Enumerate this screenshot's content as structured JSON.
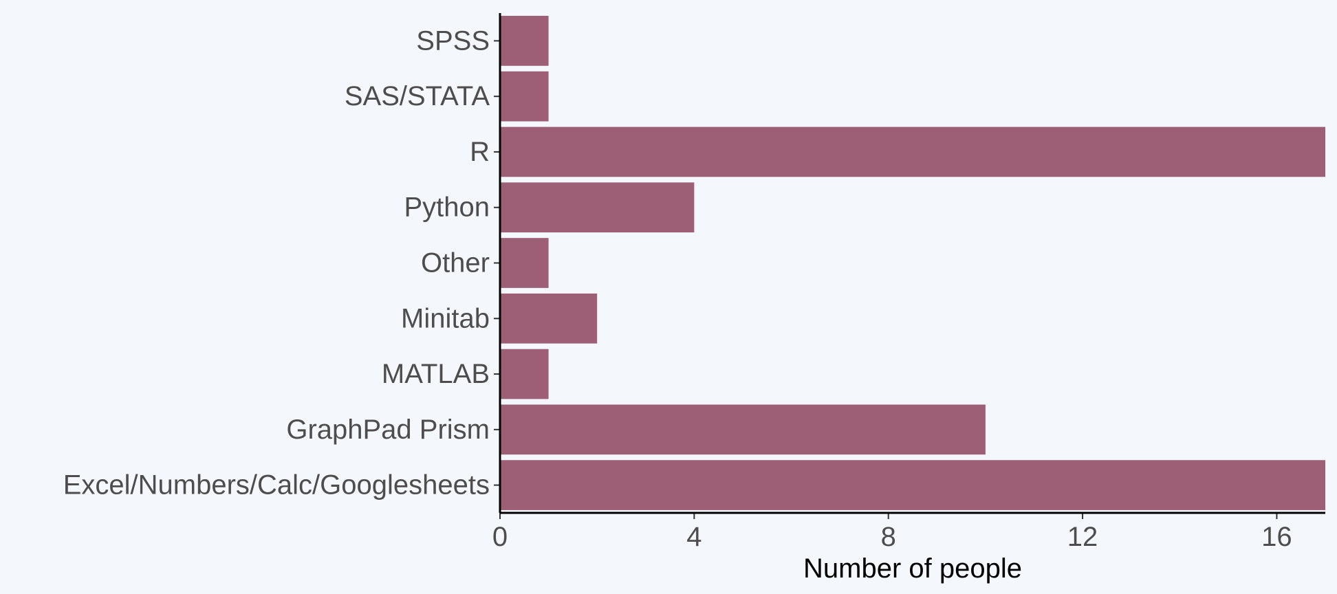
{
  "chart_data": {
    "type": "bar",
    "orientation": "horizontal",
    "categories": [
      "SPSS",
      "SAS/STATA",
      "R",
      "Python",
      "Other",
      "Minitab",
      "MATLAB",
      "GraphPad Prism",
      "Excel/Numbers/Calc/Googlesheets"
    ],
    "values": [
      1,
      1,
      17,
      4,
      1,
      2,
      1,
      10,
      17
    ],
    "xlabel": "Number of people",
    "ylabel": "",
    "xlim": [
      0,
      17
    ],
    "xticks": [
      0,
      4,
      8,
      12,
      16
    ],
    "grid": false,
    "legend": "none",
    "colors": {
      "bar": "#9c5f75",
      "axis": "#000000",
      "background": "#f4f8fc"
    }
  }
}
